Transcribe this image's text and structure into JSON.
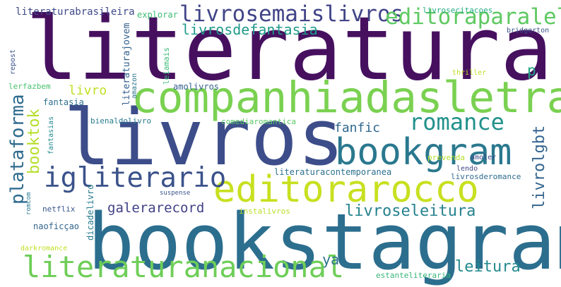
{
  "words": [
    {
      "text": "literatura",
      "color": "#46105f",
      "orientation": "horizontal"
    },
    {
      "text": "bookstagram",
      "color": "#2c6e8e",
      "orientation": "horizontal"
    },
    {
      "text": "livros",
      "color": "#3d4d8a",
      "orientation": "horizontal"
    },
    {
      "text": "companhiadasletras",
      "color": "#7ad151",
      "orientation": "horizontal"
    },
    {
      "text": "bookgram",
      "color": "#2a788e",
      "orientation": "horizontal"
    },
    {
      "text": "editorarocco",
      "color": "#c8e020",
      "orientation": "horizontal"
    },
    {
      "text": "literaturanacional",
      "color": "#6ece58",
      "orientation": "horizontal"
    },
    {
      "text": "livrosemaislivros",
      "color": "#414487",
      "orientation": "horizontal"
    },
    {
      "text": "editoraparalela",
      "color": "#5ec962",
      "orientation": "horizontal"
    },
    {
      "text": "romance",
      "color": "#21918c",
      "orientation": "horizontal"
    },
    {
      "text": "igliterario",
      "color": "#3b528b",
      "orientation": "horizontal"
    },
    {
      "text": "livrosdefantasia",
      "color": "#1f9a8a",
      "orientation": "horizontal"
    },
    {
      "text": "livroseleitura",
      "color": "#26828e",
      "orientation": "horizontal"
    },
    {
      "text": "leitura",
      "color": "#238a8d",
      "orientation": "horizontal"
    },
    {
      "text": "galerarecord",
      "color": "#424186",
      "orientation": "horizontal"
    },
    {
      "text": "plataforma",
      "color": "#2e6b8e",
      "orientation": "vertical"
    },
    {
      "text": "booktok",
      "color": "#b5de2b",
      "orientation": "vertical"
    },
    {
      "text": "livrolgbt",
      "color": "#33638d",
      "orientation": "vertical"
    },
    {
      "text": "fanfic",
      "color": "#30678d",
      "orientation": "horizontal"
    },
    {
      "text": "livro",
      "color": "#c2df23",
      "orientation": "horizontal"
    },
    {
      "text": "ya",
      "color": "#2c738e",
      "orientation": "horizontal"
    },
    {
      "text": "p",
      "color": "#21a685",
      "orientation": "horizontal"
    },
    {
      "text": "literaturabrasileira",
      "color": "#3e4a89",
      "orientation": "horizontal"
    },
    {
      "text": "explorar",
      "color": "#3fbc73",
      "orientation": "horizontal"
    },
    {
      "text": "livrosecitacoes",
      "color": "#25ac82",
      "orientation": "horizontal"
    },
    {
      "text": "bridgerton",
      "color": "#3b528b",
      "orientation": "horizontal"
    },
    {
      "text": "literaturajovem",
      "color": "#34618d",
      "orientation": "vertical"
    },
    {
      "text": "amazon",
      "color": "#2a778e",
      "orientation": "vertical"
    },
    {
      "text": "leiamais",
      "color": "#3aba76",
      "orientation": "vertical"
    },
    {
      "text": "repost",
      "color": "#3b528b",
      "orientation": "vertical"
    },
    {
      "text": "lerfazbem",
      "color": "#48c16e",
      "orientation": "horizontal"
    },
    {
      "text": "amolivros",
      "color": "#34608d",
      "orientation": "horizontal"
    },
    {
      "text": "thriller",
      "color": "#bddf26",
      "orientation": "horizontal"
    },
    {
      "text": "fantasia",
      "color": "#2e6f8e",
      "orientation": "horizontal"
    },
    {
      "text": "bienaldolivro",
      "color": "#297b8e",
      "orientation": "horizontal"
    },
    {
      "text": "comediaromantica",
      "color": "#59c864",
      "orientation": "horizontal"
    },
    {
      "text": "fantasias",
      "color": "#23888e",
      "orientation": "vertical"
    },
    {
      "text": "prevenda",
      "color": "#b5de2b",
      "orientation": "horizontal"
    },
    {
      "text": "amoler",
      "color": "#404588",
      "orientation": "horizontal"
    },
    {
      "text": "literaturacontemporanea",
      "color": "#2d708e",
      "orientation": "horizontal"
    },
    {
      "text": "lendo",
      "color": "#3f4788",
      "orientation": "horizontal"
    },
    {
      "text": "livrosderomance",
      "color": "#2f6c8e",
      "orientation": "horizontal"
    },
    {
      "text": "suspense",
      "color": "#3b528b",
      "orientation": "horizontal"
    },
    {
      "text": "romcom",
      "color": "#29798e",
      "orientation": "vertical"
    },
    {
      "text": "netflix",
      "color": "#39568c",
      "orientation": "horizontal"
    },
    {
      "text": "instalivros",
      "color": "#b8de29",
      "orientation": "horizontal"
    },
    {
      "text": "dicadelivro",
      "color": "#287c8e",
      "orientation": "vertical"
    },
    {
      "text": "naoficçao",
      "color": "#32658e",
      "orientation": "horizontal"
    },
    {
      "text": "darkromance",
      "color": "#c2df23",
      "orientation": "horizontal"
    },
    {
      "text": "estanteliteraria",
      "color": "#35b779",
      "orientation": "horizontal"
    }
  ]
}
